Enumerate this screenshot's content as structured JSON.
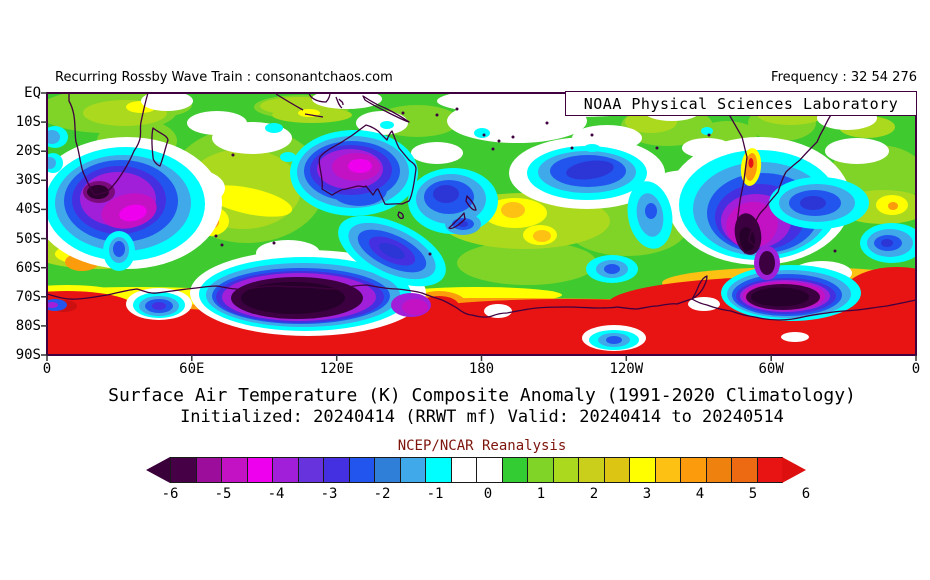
{
  "header": {
    "left": "Recurring Rossby Wave Train : consonantchaos.com",
    "right": "Frequency : 32 54 276"
  },
  "overlay": {
    "label": "NOAA Physical Sciences Laboratory"
  },
  "map": {
    "lat_labels": [
      "EQ",
      "10S",
      "20S",
      "30S",
      "40S",
      "50S",
      "60S",
      "70S",
      "80S",
      "90S"
    ],
    "lon_labels": [
      "0",
      "60E",
      "120E",
      "180",
      "120W",
      "60W",
      "0"
    ]
  },
  "titles": {
    "line1": "Surface Air Temperature (K) Composite Anomaly (1991-2020 Climatology)",
    "line2": "Initialized: 20240414 (RRWT mf) Valid: 20240414 to 20240514",
    "source": "NCEP/NCAR Reanalysis"
  },
  "colorbar": {
    "tick_labels": [
      "-6",
      "-5",
      "-4",
      "-3",
      "-2",
      "-1",
      "0",
      "1",
      "2",
      "3",
      "4",
      "5",
      "6"
    ],
    "cell_colors": [
      "#460046",
      "#9c0d9c",
      "#c312c3",
      "#ee00ee",
      "#a11fd9",
      "#6633dd",
      "#4430e0",
      "#2255ee",
      "#2f7fd9",
      "#3fa9ea",
      "#00ffff",
      "#ffffff",
      "#ffffff",
      "#33cc33",
      "#7fd427",
      "#abd91e",
      "#c9cf1a",
      "#ddc613",
      "#ffff00",
      "#fdc113",
      "#fc9c0c",
      "#ef820f",
      "#ed6a12",
      "#e81414"
    ],
    "left_arrow_color": "#3a003a",
    "right_arrow_color": "#dd0f0f"
  },
  "chart_data": {
    "type": "heatmap",
    "title": "Surface Air Temperature (K) Composite Anomaly (1991-2020 Climatology)",
    "subtitle": "Initialized: 20240414 (RRWT mf) Valid: 20240414 to 20240514",
    "source": "NCEP/NCAR Reanalysis",
    "variable": "Surface air temperature composite anomaly",
    "units": "K",
    "x_axis": {
      "label": "longitude",
      "tick_labels": [
        "0",
        "60E",
        "120E",
        "180",
        "120W",
        "60W",
        "0"
      ],
      "range_deg": [
        0,
        360
      ]
    },
    "y_axis": {
      "label": "latitude",
      "tick_labels": [
        "EQ",
        "10S",
        "20S",
        "30S",
        "40S",
        "50S",
        "60S",
        "70S",
        "80S",
        "90S"
      ],
      "range": [
        "EQ",
        "90S"
      ]
    },
    "color_scale": {
      "min": -6,
      "max": 6,
      "step": 0.5,
      "colors": [
        "#460046",
        "#9c0d9c",
        "#c312c3",
        "#ee00ee",
        "#a11fd9",
        "#6633dd",
        "#4430e0",
        "#2255ee",
        "#2f7fd9",
        "#3fa9ea",
        "#00ffff",
        "#ffffff",
        "#ffffff",
        "#33cc33",
        "#7fd427",
        "#abd91e",
        "#c9cf1a",
        "#ddc613",
        "#ffff00",
        "#fdc113",
        "#fc9c0c",
        "#ef820f",
        "#ed6a12",
        "#e81414"
      ]
    },
    "anomaly_centers": [
      {
        "region": "Cape of South Africa",
        "approx_lat": "35S",
        "approx_lon": "20E",
        "value_k": -6
      },
      {
        "region": "SW Indian Ocean off South Africa",
        "approx_lat": "40S",
        "approx_lon": "35E",
        "value_k": -4.5
      },
      {
        "region": "central Australia",
        "approx_lat": "25S",
        "approx_lon": "130E",
        "value_k": -4.5
      },
      {
        "region": "Tasman Sea / New Zealand",
        "approx_lat": "35S",
        "approx_lon": "168E",
        "value_k": -3
      },
      {
        "region": "central South Pacific",
        "approx_lat": "27S",
        "approx_lon": "140W",
        "value_k": -3
      },
      {
        "region": "southern South America (Patagonia)",
        "approx_lat": "45S",
        "approx_lon": "70W",
        "value_k": -6
      },
      {
        "region": "SW Atlantic",
        "approx_lat": "36S",
        "approx_lon": "40W",
        "value_k": -2.5
      },
      {
        "region": "Southern Ocean / East Antarctic coast",
        "approx_lat": "70S",
        "approx_lon": "70E-150E",
        "value_k": -6
      },
      {
        "region": "Weddell Sea",
        "approx_lat": "70S",
        "approx_lon": "60W-30W",
        "value_k": -6
      },
      {
        "region": "Antarctic interior south of 78S",
        "approx_lat": "80S-90S",
        "approx_lon": "all",
        "value_k": 6
      },
      {
        "region": "subtropical central Indian Ocean",
        "approx_lat": "35S",
        "approx_lon": "80E",
        "value_k": 3.5
      },
      {
        "region": "South Pacific mid-latitudes",
        "approx_lat": "42S",
        "approx_lon": "175W",
        "value_k": 4
      },
      {
        "region": "tropics EQ-20S broadly",
        "approx_lat": "0-20S",
        "approx_lon": "all",
        "value_k": 1.5
      }
    ]
  }
}
